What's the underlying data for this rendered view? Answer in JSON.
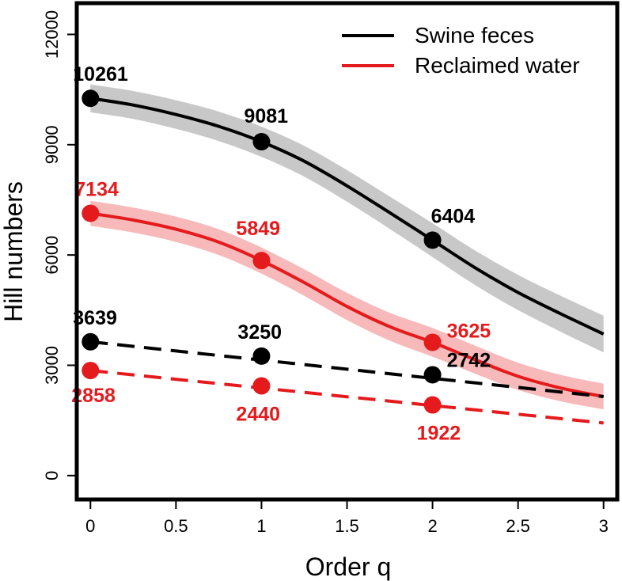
{
  "chart_data": {
    "type": "line",
    "title": "",
    "xlabel": "Order q",
    "ylabel": "Hill numbers",
    "xlim": [
      -0.08,
      3.08
    ],
    "ylim": [
      -650,
      12850
    ],
    "x_ticks": [
      0,
      0.5,
      1,
      1.5,
      2,
      2.5,
      3
    ],
    "x_tick_labels": [
      "0",
      "0.5",
      "1",
      "1.5",
      "2",
      "2.5",
      "3"
    ],
    "y_ticks": [
      0,
      3000,
      6000,
      9000,
      12000
    ],
    "y_tick_labels": [
      "0",
      "3000",
      "6000",
      "9000",
      "12000"
    ],
    "legend": {
      "position": "top-right",
      "entries": [
        {
          "label": "Swine feces",
          "color": "#000000"
        },
        {
          "label": "Reclaimed water",
          "color": "#e41a1c"
        }
      ]
    },
    "series": [
      {
        "name": "Swine feces (solid)",
        "style": "solid",
        "color": "#000000",
        "band_color": "#c8c8c8",
        "curve": {
          "x": [
            0,
            0.25,
            0.5,
            0.75,
            1,
            1.25,
            1.5,
            1.75,
            2,
            2.25,
            2.5,
            2.75,
            3
          ],
          "y": [
            10261,
            10080,
            9820,
            9500,
            9081,
            8550,
            7880,
            7150,
            6404,
            5650,
            4980,
            4400,
            3850
          ],
          "band": [
            380,
            380,
            390,
            400,
            410,
            420,
            430,
            440,
            460,
            470,
            480,
            490,
            500
          ]
        },
        "points": [
          {
            "x": 0,
            "y": 10261,
            "label": "10261"
          },
          {
            "x": 1,
            "y": 9081,
            "label": "9081"
          },
          {
            "x": 2,
            "y": 6404,
            "label": "6404"
          }
        ]
      },
      {
        "name": "Reclaimed water (solid)",
        "style": "solid",
        "color": "#e41a1c",
        "band_color": "#f7b9b9",
        "curve": {
          "x": [
            0,
            0.25,
            0.5,
            0.75,
            1,
            1.25,
            1.5,
            1.75,
            2,
            2.25,
            2.5,
            2.75,
            3
          ],
          "y": [
            7134,
            6950,
            6700,
            6350,
            5849,
            5250,
            4600,
            4050,
            3625,
            3150,
            2700,
            2380,
            2150
          ],
          "band": [
            340,
            340,
            345,
            350,
            355,
            360,
            370,
            380,
            390,
            380,
            370,
            360,
            350
          ]
        },
        "points": [
          {
            "x": 0,
            "y": 7134,
            "label": "7134"
          },
          {
            "x": 1,
            "y": 5849,
            "label": "5849"
          },
          {
            "x": 2,
            "y": 3625,
            "label": "3625"
          }
        ]
      },
      {
        "name": "Swine feces (dashed)",
        "style": "dashed",
        "color": "#000000",
        "curve": {
          "x": [
            0,
            3
          ],
          "y": [
            3639,
            2150
          ]
        },
        "points": [
          {
            "x": 0,
            "y": 3639,
            "label": "3639"
          },
          {
            "x": 1,
            "y": 3250,
            "label": "3250"
          },
          {
            "x": 2,
            "y": 2742,
            "label": "2742"
          }
        ]
      },
      {
        "name": "Reclaimed water (dashed)",
        "style": "dashed",
        "color": "#e41a1c",
        "curve": {
          "x": [
            0,
            3
          ],
          "y": [
            2858,
            1430
          ]
        },
        "points": [
          {
            "x": 0,
            "y": 2858,
            "label": "2858"
          },
          {
            "x": 1,
            "y": 2440,
            "label": "2440"
          },
          {
            "x": 2,
            "y": 1922,
            "label": "1922"
          }
        ]
      }
    ]
  }
}
